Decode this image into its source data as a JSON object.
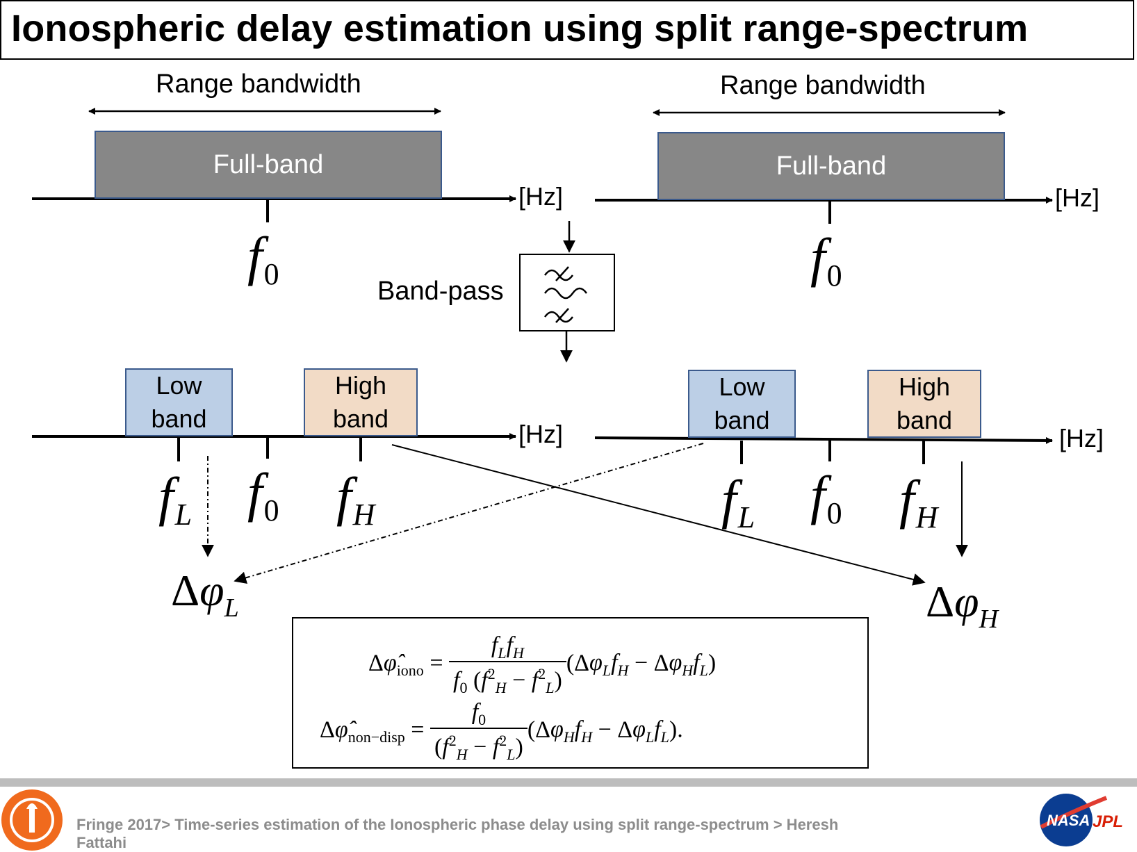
{
  "title": "Ionospheric delay estimation using split range-spectrum",
  "left": {
    "bandwidth_label": "Range bandwidth",
    "full_band_label": "Full-band",
    "hz_top": "[Hz]",
    "low_band_label_1": "Low",
    "low_band_label_2": "band",
    "high_band_label_1": "High",
    "high_band_label_2": "band",
    "hz_bottom": "[Hz]"
  },
  "right": {
    "bandwidth_label": "Range bandwidth",
    "full_band_label": "Full-band",
    "hz_top": "[Hz]",
    "low_band_label_1": "Low",
    "low_band_label_2": "band",
    "high_band_label_1": "High",
    "high_band_label_2": "band",
    "hz_bottom": "[Hz]"
  },
  "bandpass_label": "Band-pass",
  "symbols": {
    "f": "f",
    "zero": "0",
    "L": "L",
    "H": "H",
    "delta": "Δ",
    "phi": "φ"
  },
  "equations": {
    "iono_sub": "iono",
    "nondisp_sub": "non−disp"
  },
  "footer": "Fringe 2017> Time-series estimation of the Ionospheric phase delay using split range-spectrum > Heresh Fattahi",
  "colors": {
    "full_band": "#878787",
    "low_band": "#bccfe6",
    "high_band": "#f2dbc6",
    "box_border": "#3b5a8c",
    "footer_text": "#8c8c8c",
    "nasa_blue": "#0b3d91",
    "nasa_red": "#e03c31",
    "jpl_red": "#d81e05",
    "caltech_orange": "#f06a1d"
  }
}
